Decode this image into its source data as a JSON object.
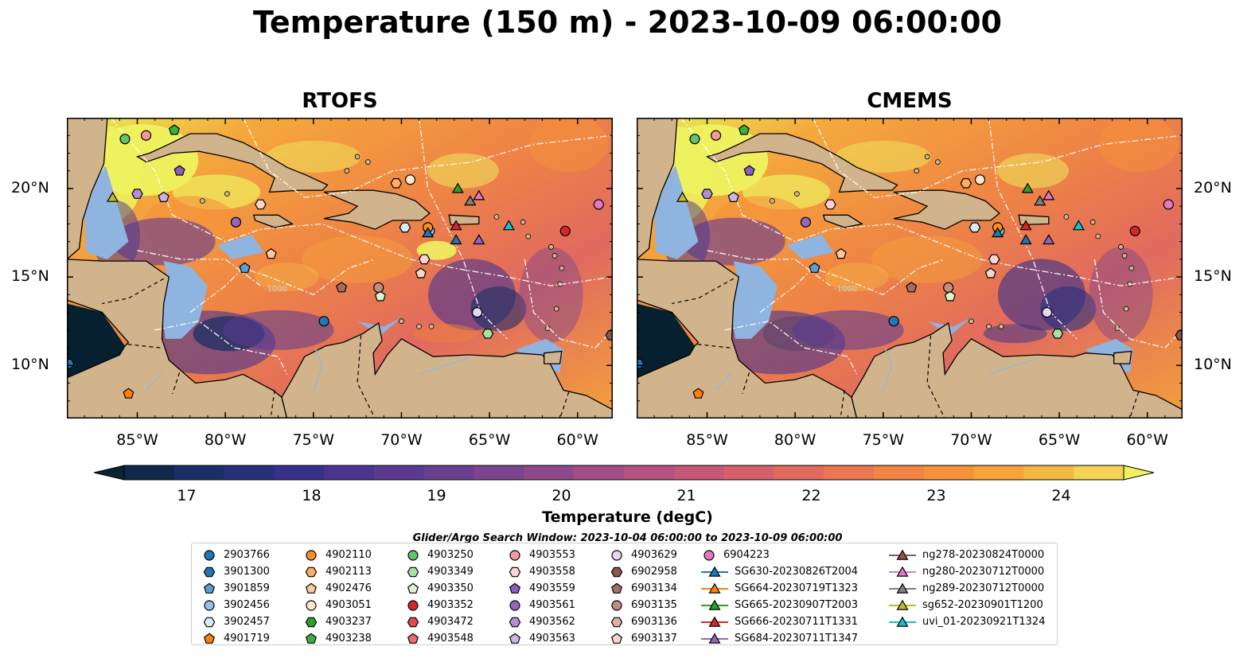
{
  "title": "Temperature (150 m) - 2023-10-09 06:00:00",
  "panels": [
    {
      "id": "rtofs",
      "title": "RTOFS"
    },
    {
      "id": "cmems",
      "title": "CMEMS"
    }
  ],
  "colors": {
    "land": "#d2b48c",
    "shelf": "#8fb4e0",
    "deep": "#07202f",
    "warm": "#f07f3c",
    "hot": "#f2f85a",
    "cool": "#5b3b96"
  },
  "map": {
    "lon_range": [
      -89,
      -58
    ],
    "lat_range": [
      7,
      24
    ],
    "lon_ticks": [
      -85,
      -80,
      -75,
      -70,
      -65,
      -60
    ],
    "lon_tick_labels": [
      "85°W",
      "80°W",
      "75°W",
      "70°W",
      "65°W",
      "60°W"
    ],
    "lat_ticks": [
      10,
      15,
      20
    ],
    "lat_tick_labels": [
      "10°N",
      "15°N",
      "20°N"
    ],
    "contour_label": "-1000"
  },
  "colorbar": {
    "label": "Temperature (degC)",
    "vmin": 16.5,
    "vmax": 24.5,
    "step": 0.5,
    "ticks": [
      17,
      18,
      19,
      20,
      21,
      22,
      23,
      24
    ],
    "tick_labels": [
      "17",
      "18",
      "19",
      "20",
      "21",
      "22",
      "23",
      "24"
    ],
    "extend": "both",
    "palette": [
      "#0b2232",
      "#11284a",
      "#1b2f66",
      "#27307d",
      "#36318a",
      "#4a3490",
      "#5a3a91",
      "#6b3f8f",
      "#7c448d",
      "#8e498a",
      "#a24e86",
      "#b5527f",
      "#c65877",
      "#d5606c",
      "#e16a5f",
      "#eb7650",
      "#f28444",
      "#f5923a",
      "#f7a33a",
      "#f5b943",
      "#f3d255",
      "#eef25f"
    ]
  },
  "search_window": "Glider/Argo Search Window: 2023-10-04 06:00:00 to 2023-10-09 06:00:00",
  "legend": {
    "columns": [
      [
        {
          "label": "2903766",
          "marker": "circle",
          "color": "#1f77b4"
        },
        {
          "label": "3901300",
          "marker": "hexagon",
          "color": "#1f77b4"
        },
        {
          "label": "3901859",
          "marker": "pentagon",
          "color": "#5a9fd4"
        },
        {
          "label": "3902456",
          "marker": "circle",
          "color": "#8ec3ea"
        },
        {
          "label": "3902457",
          "marker": "hexagon",
          "color": "#d5ecf8"
        },
        {
          "label": "4901719",
          "marker": "pentagon",
          "color": "#ff7f0e"
        }
      ],
      [
        {
          "label": "4902110",
          "marker": "circle",
          "color": "#ff8c2a"
        },
        {
          "label": "4902113",
          "marker": "hexagon",
          "color": "#ffad62"
        },
        {
          "label": "4902476",
          "marker": "pentagon",
          "color": "#ffc89a"
        },
        {
          "label": "4903051",
          "marker": "circle",
          "color": "#ffe6cc"
        },
        {
          "label": "4903237",
          "marker": "hexagon",
          "color": "#2ca02c"
        },
        {
          "label": "4903238",
          "marker": "pentagon",
          "color": "#3cb03c"
        }
      ],
      [
        {
          "label": "4903250",
          "marker": "circle",
          "color": "#66c266"
        },
        {
          "label": "4903349",
          "marker": "hexagon",
          "color": "#a6e3a1"
        },
        {
          "label": "4903350",
          "marker": "pentagon",
          "color": "#d9f5d0"
        },
        {
          "label": "4903352",
          "marker": "circle",
          "color": "#d62728"
        },
        {
          "label": "4903472",
          "marker": "hexagon",
          "color": "#e04a4a"
        },
        {
          "label": "4903548",
          "marker": "pentagon",
          "color": "#f06a6a"
        }
      ],
      [
        {
          "label": "4903553",
          "marker": "circle",
          "color": "#f59a9a"
        },
        {
          "label": "4903558",
          "marker": "hexagon",
          "color": "#fcd2d2"
        },
        {
          "label": "4903559",
          "marker": "pentagon",
          "color": "#8c5cc4"
        },
        {
          "label": "4903561",
          "marker": "circle",
          "color": "#9467bd"
        },
        {
          "label": "4903562",
          "marker": "hexagon",
          "color": "#b08fd6"
        },
        {
          "label": "4903563",
          "marker": "pentagon",
          "color": "#cbb3e8"
        }
      ],
      [
        {
          "label": "4903629",
          "marker": "circle",
          "color": "#e5d6f5"
        },
        {
          "label": "6902958",
          "marker": "hexagon",
          "color": "#8c564b"
        },
        {
          "label": "6903134",
          "marker": "pentagon",
          "color": "#a0705f"
        },
        {
          "label": "6903135",
          "marker": "circle",
          "color": "#c08f80"
        },
        {
          "label": "6903136",
          "marker": "hexagon",
          "color": "#e0b0a0"
        },
        {
          "label": "6903137",
          "marker": "pentagon",
          "color": "#f5d6cc"
        }
      ],
      [
        {
          "label": "6904223",
          "marker": "circle",
          "color": "#e377c2"
        },
        {
          "label": "SG630-20230826T2004",
          "marker": "triangle",
          "color": "#1f77b4",
          "line": true
        },
        {
          "label": "SG664-20230719T1323",
          "marker": "triangle",
          "color": "#ff7f0e",
          "line": true
        },
        {
          "label": "SG665-20230907T2003",
          "marker": "triangle",
          "color": "#2ca02c",
          "line": true
        },
        {
          "label": "SG666-20230711T1331",
          "marker": "triangle",
          "color": "#d62728",
          "line": true
        },
        {
          "label": "SG684-20230711T1347",
          "marker": "triangle",
          "color": "#9467bd",
          "line": true
        }
      ],
      [
        {
          "label": "ng278-20230824T0000",
          "marker": "triangle",
          "color": "#8c564b",
          "line": true
        },
        {
          "label": "ng280-20230712T0000",
          "marker": "triangle",
          "color": "#e377c2",
          "line": true
        },
        {
          "label": "ng289-20230712T0000",
          "marker": "triangle",
          "color": "#7f7f7f",
          "line": true
        },
        {
          "label": "sg652-20230901T1200",
          "marker": "triangle",
          "color": "#bcbd22",
          "line": true
        },
        {
          "label": "uvi_01-20230921T1324",
          "marker": "triangle",
          "color": "#17becf",
          "line": true
        }
      ]
    ]
  },
  "map_markers": [
    {
      "lon": -88.9,
      "lat": 10.1,
      "marker": "hexagon",
      "color": "#1f77b4"
    },
    {
      "lon": -74.4,
      "lat": 12.5,
      "marker": "circle",
      "color": "#1f77b4"
    },
    {
      "lon": -78.9,
      "lat": 15.5,
      "marker": "pentagon",
      "color": "#5a9fd4"
    },
    {
      "lon": -68.4,
      "lat": 17.6,
      "marker": "circle",
      "color": "#8ec3ea"
    },
    {
      "lon": -69.8,
      "lat": 17.8,
      "marker": "hexagon",
      "color": "#d5ecf8"
    },
    {
      "lon": -85.5,
      "lat": 8.4,
      "marker": "pentagon",
      "color": "#ff7f0e"
    },
    {
      "lon": -68.5,
      "lat": 17.8,
      "marker": "circle",
      "color": "#ff8c2a"
    },
    {
      "lon": -70.3,
      "lat": 20.3,
      "marker": "hexagon",
      "color": "#ffad62"
    },
    {
      "lon": -77.4,
      "lat": 16.3,
      "marker": "pentagon",
      "color": "#ffc89a"
    },
    {
      "lon": -69.5,
      "lat": 20.5,
      "marker": "circle",
      "color": "#ffe6cc"
    },
    {
      "lon": -58.1,
      "lat": 11.7,
      "marker": "hexagon",
      "color": "#8c564b"
    },
    {
      "lon": -82.9,
      "lat": 23.3,
      "marker": "pentagon",
      "color": "#3cb03c"
    },
    {
      "lon": -85.7,
      "lat": 22.8,
      "marker": "circle",
      "color": "#66c266"
    },
    {
      "lon": -65.1,
      "lat": 11.8,
      "marker": "hexagon",
      "color": "#a6e3a1"
    },
    {
      "lon": -71.2,
      "lat": 13.9,
      "marker": "pentagon",
      "color": "#d9f5d0"
    },
    {
      "lon": -60.7,
      "lat": 17.6,
      "marker": "circle",
      "color": "#d62728"
    },
    {
      "lon": -84.5,
      "lat": 23.0,
      "marker": "circle",
      "color": "#f59a9a"
    },
    {
      "lon": -78.0,
      "lat": 19.1,
      "marker": "hexagon",
      "color": "#fcd2d2"
    },
    {
      "lon": -68.7,
      "lat": 16.0,
      "marker": "hexagon",
      "color": "#fcd2d2"
    },
    {
      "lon": -68.9,
      "lat": 15.2,
      "marker": "pentagon",
      "color": "#f5d6cc"
    },
    {
      "lon": -82.6,
      "lat": 21.0,
      "marker": "pentagon",
      "color": "#8c5cc4"
    },
    {
      "lon": -79.4,
      "lat": 18.1,
      "marker": "circle",
      "color": "#9467bd"
    },
    {
      "lon": -85.0,
      "lat": 19.7,
      "marker": "hexagon",
      "color": "#b08fd6"
    },
    {
      "lon": -83.5,
      "lat": 19.5,
      "marker": "pentagon",
      "color": "#cbb3e8"
    },
    {
      "lon": -65.7,
      "lat": 13.0,
      "marker": "circle",
      "color": "#e5d6f5"
    },
    {
      "lon": -73.4,
      "lat": 14.4,
      "marker": "pentagon",
      "color": "#a0705f"
    },
    {
      "lon": -71.3,
      "lat": 14.4,
      "marker": "circle",
      "color": "#c08f80"
    },
    {
      "lon": -58.8,
      "lat": 19.1,
      "marker": "circle",
      "color": "#e377c2"
    },
    {
      "lon": -86.4,
      "lat": 19.5,
      "marker": "triangle",
      "color": "#bcbd22"
    },
    {
      "lon": -68.5,
      "lat": 17.5,
      "marker": "triangle",
      "color": "#1f77b4"
    },
    {
      "lon": -66.8,
      "lat": 20.0,
      "marker": "triangle",
      "color": "#2ca02c"
    },
    {
      "lon": -66.9,
      "lat": 17.9,
      "marker": "triangle",
      "color": "#d62728"
    },
    {
      "lon": -66.9,
      "lat": 17.1,
      "marker": "triangle",
      "color": "#1f77b4"
    },
    {
      "lon": -65.6,
      "lat": 17.1,
      "marker": "triangle",
      "color": "#9467bd"
    },
    {
      "lon": -66.1,
      "lat": 19.3,
      "marker": "triangle",
      "color": "#7f7f7f"
    },
    {
      "lon": -65.6,
      "lat": 19.6,
      "marker": "triangle",
      "color": "#e377c2"
    },
    {
      "lon": -63.9,
      "lat": 17.9,
      "marker": "triangle",
      "color": "#17becf"
    }
  ]
}
